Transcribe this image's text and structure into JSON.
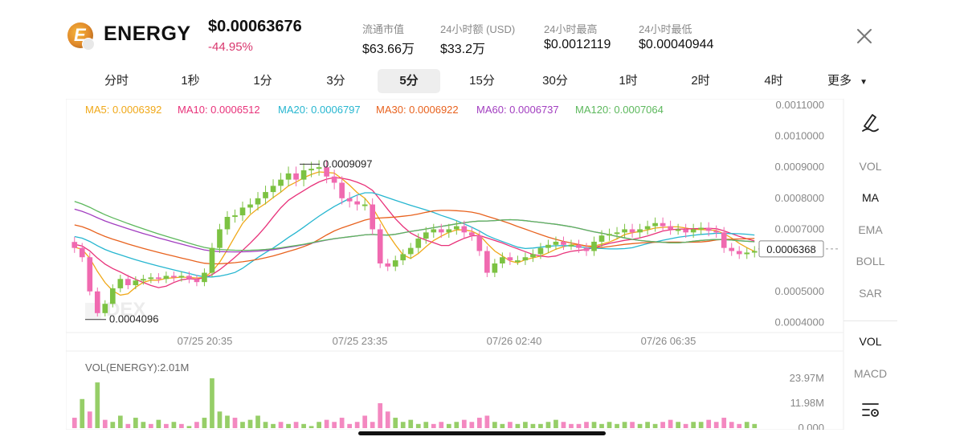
{
  "token": {
    "symbol": "ENERGY",
    "logo_letter": "E",
    "price": "$0.00063676",
    "change": "-44.95%"
  },
  "stats": [
    {
      "label": "流通市值",
      "value": "$63.66万"
    },
    {
      "label": "24小时额 (USD)",
      "value": "$33.2万"
    },
    {
      "label": "24小时最高",
      "value": "$0.0012119"
    },
    {
      "label": "24小时最低",
      "value": "$0.00040944"
    }
  ],
  "timeframes": [
    "分时",
    "1秒",
    "1分",
    "3分",
    "5分",
    "15分",
    "30分",
    "1时",
    "2时",
    "4时",
    "更多"
  ],
  "active_timeframe": "5分",
  "ma_legend": [
    {
      "label": "MA5: 0.0006392",
      "color": "#f0a818"
    },
    {
      "label": "MA10: 0.0006512",
      "color": "#e8327a"
    },
    {
      "label": "MA20: 0.0006797",
      "color": "#26b6d0"
    },
    {
      "label": "MA30: 0.0006922",
      "color": "#e8621e"
    },
    {
      "label": "MA60: 0.0006737",
      "color": "#a23ec0"
    },
    {
      "label": "MA120: 0.0007064",
      "color": "#5cb85c"
    }
  ],
  "price_axis": [
    "0.0011000",
    "0.0010000",
    "0.0009000",
    "0.0008000",
    "0.0007000",
    "0.0005000",
    "0.0004000"
  ],
  "current_price_tag": "0.0006368",
  "high_marker": "0.0009097",
  "low_marker": "0.0004096",
  "time_axis": [
    "07/25 20:35",
    "07/25 23:35",
    "07/26 02:40",
    "07/26 06:35"
  ],
  "watermark": "DEX",
  "volume": {
    "title": "VOL(ENERGY):2.01M",
    "axis": [
      "23.97M",
      "11.98M",
      "0.000"
    ]
  },
  "side_panel": {
    "main_indicators": [
      "VOL",
      "MA",
      "EMA",
      "BOLL",
      "SAR"
    ],
    "active_main": "MA",
    "sub_indicators": [
      "VOL",
      "MACD"
    ],
    "active_sub": "VOL"
  },
  "colors": {
    "up": "#7cc242",
    "down": "#f06ab0",
    "change_down": "#d9376e",
    "grid": "#eeeeee"
  },
  "chart_data": {
    "type": "candlestick",
    "interval": "5分",
    "ylim": [
      0.00037,
      0.00111
    ],
    "price_high": 0.0009097,
    "price_low": 0.0004096,
    "last_price": 0.0006368,
    "close_series": [
      0.00064,
      0.00061,
      0.0005,
      0.00043,
      0.00046,
      0.00051,
      0.00054,
      0.00052,
      0.000535,
      0.00054,
      0.000545,
      0.00054,
      0.00055,
      0.000545,
      0.00055,
      0.00054,
      0.00053,
      0.00056,
      0.00064,
      0.0007,
      0.00074,
      0.000745,
      0.00077,
      0.00078,
      0.0008,
      0.00082,
      0.00084,
      0.00086,
      0.00088,
      0.00086,
      0.00089,
      0.000895,
      0.0009,
      0.00087,
      0.00085,
      0.0008,
      0.00079,
      0.00078,
      0.00078,
      0.0007,
      0.00059,
      0.00058,
      0.0006,
      0.00062,
      0.00064,
      0.00067,
      0.00069,
      0.0007,
      0.00069,
      0.0007,
      0.00071,
      0.00069,
      0.00068,
      0.00063,
      0.00056,
      0.00059,
      0.00061,
      0.0006,
      0.0006,
      0.00061,
      0.00062,
      0.00064,
      0.00065,
      0.00066,
      0.00065,
      0.00065,
      0.00064,
      0.00063,
      0.00066,
      0.00068,
      0.000685,
      0.00069,
      0.0007,
      0.00069,
      0.0007,
      0.00071,
      0.00072,
      0.00071,
      0.0007,
      0.0007,
      0.00069,
      0.0007,
      0.000705,
      0.000695,
      0.00069,
      0.00064,
      0.00063,
      0.00062,
      0.000625,
      0.00063
    ],
    "moving_averages": [
      {
        "name": "MA5",
        "value": 0.0006392
      },
      {
        "name": "MA10",
        "value": 0.0006512
      },
      {
        "name": "MA20",
        "value": 0.0006797
      },
      {
        "name": "MA30",
        "value": 0.0006922
      },
      {
        "name": "MA60",
        "value": 0.0006737
      },
      {
        "name": "MA120",
        "value": 0.0007064
      }
    ],
    "volume_ylim": [
      0,
      23.97
    ],
    "volume_unit": "M",
    "volume_series": [
      5,
      14,
      8,
      22,
      4,
      3,
      6,
      2,
      5,
      3,
      2,
      4,
      2,
      3,
      2,
      1,
      3,
      5,
      24,
      8,
      6,
      5,
      3,
      4,
      6,
      3,
      2,
      3,
      2,
      3,
      2,
      1,
      3,
      4,
      3,
      5,
      2,
      3,
      6,
      3,
      12,
      8,
      5,
      3,
      4,
      2,
      3,
      2,
      3,
      2,
      3,
      4,
      3,
      5,
      6,
      3,
      2,
      3,
      2,
      3,
      2,
      2,
      3,
      4,
      3,
      2,
      2,
      3,
      3,
      2,
      3,
      2,
      3,
      3,
      2,
      3,
      2,
      3,
      4,
      3,
      2,
      3,
      3,
      4,
      3,
      5,
      3,
      2,
      3,
      2
    ],
    "volume_up": [
      false,
      true,
      false,
      true,
      false,
      true,
      true,
      false,
      true,
      true,
      false,
      true,
      false,
      true,
      false,
      true,
      false,
      true,
      true,
      true,
      true,
      false,
      true,
      true,
      true,
      true,
      true,
      false,
      true,
      false,
      true,
      true,
      true,
      false,
      false,
      false,
      false,
      false,
      false,
      false,
      false,
      false,
      true,
      true,
      true,
      true,
      true,
      false,
      false,
      true,
      true,
      false,
      false,
      false,
      false,
      true,
      true,
      false,
      true,
      true,
      true,
      true,
      true,
      true,
      false,
      false,
      false,
      false,
      true,
      true,
      true,
      true,
      true,
      false,
      true,
      true,
      true,
      false,
      false,
      true,
      false,
      true,
      true,
      false,
      false,
      false,
      false,
      false,
      true,
      true
    ]
  }
}
